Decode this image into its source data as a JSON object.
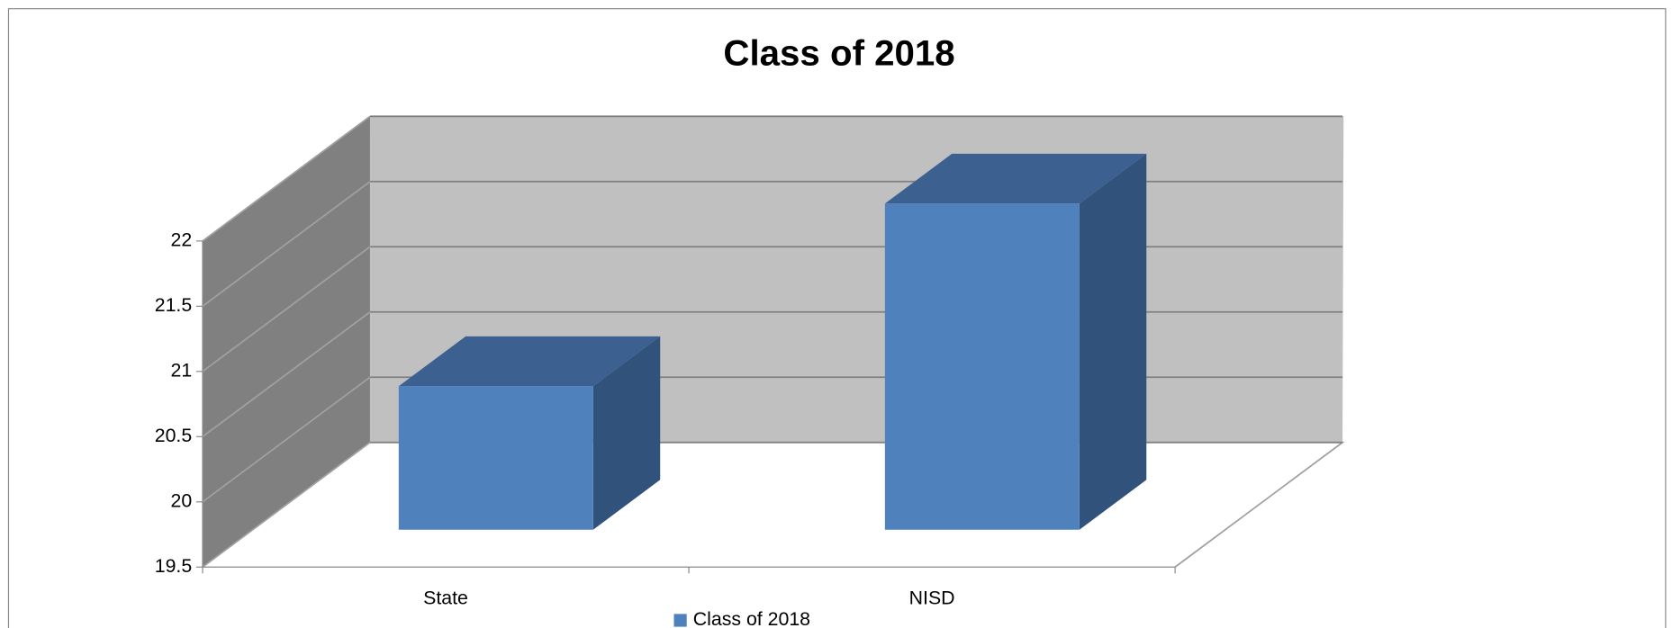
{
  "chart_data": {
    "type": "bar3d",
    "title": "Class of 2018",
    "categories": [
      "State",
      "NISD"
    ],
    "series": [
      {
        "name": "Class of 2018",
        "color": "#4f81bd",
        "values": [
          20.6,
          22.0
        ]
      }
    ],
    "ylim": [
      19.5,
      22
    ],
    "yticks": [
      19.5,
      20,
      20.5,
      21,
      21.5,
      22
    ],
    "grid": true,
    "legend": "bottom"
  }
}
